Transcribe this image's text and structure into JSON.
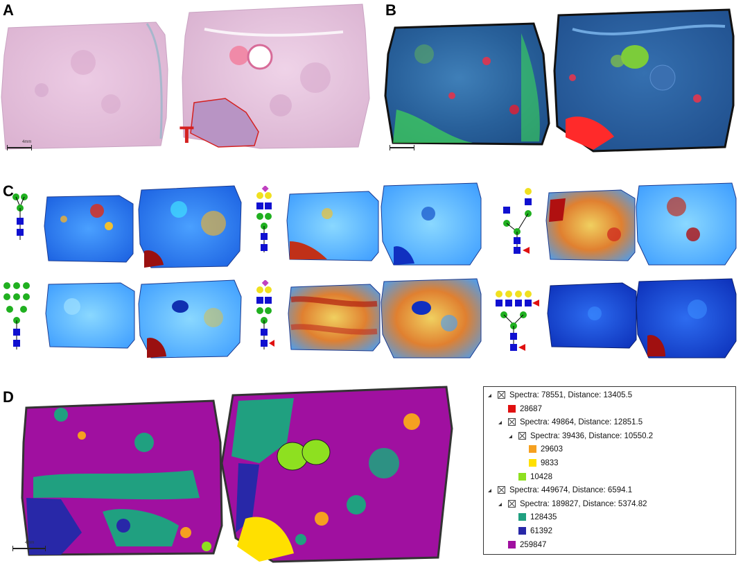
{
  "figure": {
    "panels": [
      {
        "letter": "A"
      },
      {
        "letter": "B"
      },
      {
        "letter": "C"
      },
      {
        "letter": "D"
      }
    ],
    "annotation_tumor": "T",
    "scale_label": "4mm"
  },
  "colors": {
    "he_pink": "#e8c6e0",
    "tumor_outline": "#d42020",
    "glycan_green": "#20b020",
    "glycan_blue": "#1010d0",
    "glycan_yellow": "#f0e020",
    "glycan_purple": "#c040c0",
    "glycan_red": "#e01010"
  },
  "cluster_tree": {
    "nodes": [
      {
        "text": "Spectra: 78551, Distance: 13405.5",
        "level": 0,
        "type": "node"
      },
      {
        "text": "28687",
        "level": 1,
        "type": "leaf",
        "color": "#e01010"
      },
      {
        "text": "Spectra: 49864, Distance: 12851.5",
        "level": 1,
        "type": "node"
      },
      {
        "text": "Spectra: 39436, Distance: 10550.2",
        "level": 2,
        "type": "node"
      },
      {
        "text": "29603",
        "level": 3,
        "type": "leaf",
        "color": "#f5a020"
      },
      {
        "text": "9833",
        "level": 3,
        "type": "leaf",
        "color": "#ffe000"
      },
      {
        "text": "10428",
        "level": 2,
        "type": "leaf",
        "color": "#8ee020"
      },
      {
        "text": "Spectra: 449674, Distance: 6594.1",
        "level": 0,
        "type": "node"
      },
      {
        "text": "Spectra: 189827, Distance: 5374.82",
        "level": 1,
        "type": "node"
      },
      {
        "text": "128435",
        "level": 2,
        "type": "leaf",
        "color": "#20a080"
      },
      {
        "text": "61392",
        "level": 2,
        "type": "leaf",
        "color": "#2828a8"
      },
      {
        "text": "259847",
        "level": 1,
        "type": "leaf",
        "color": "#a010a0"
      }
    ]
  }
}
